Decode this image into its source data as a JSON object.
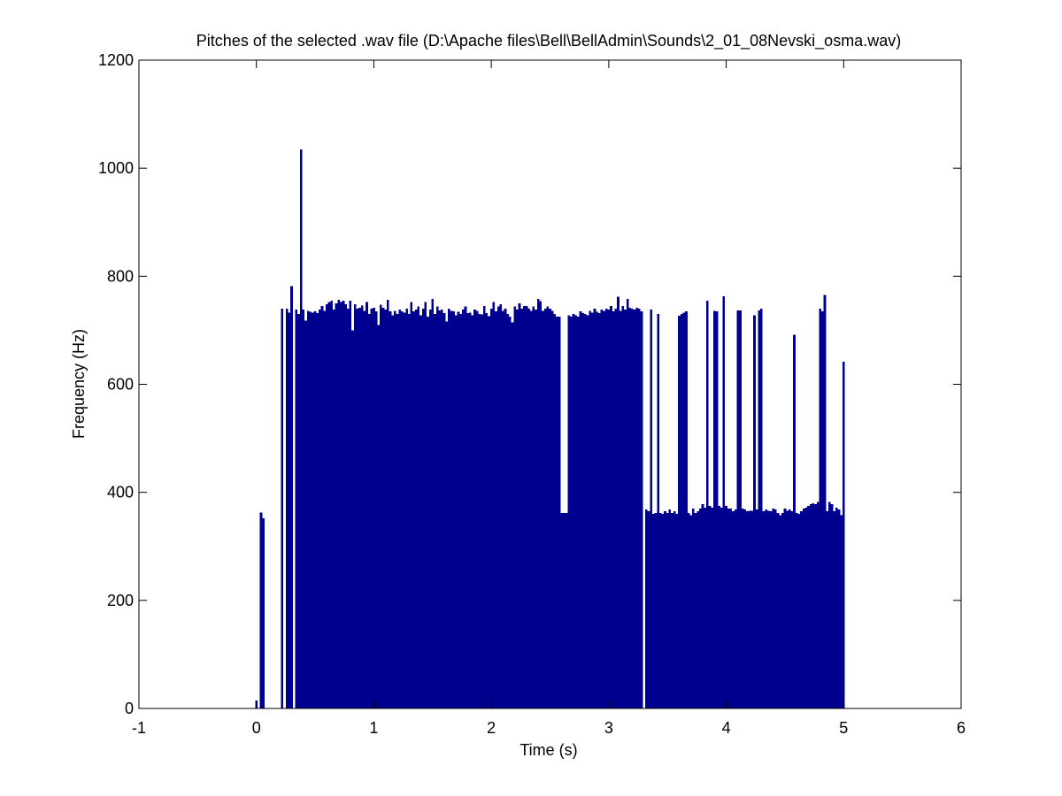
{
  "chart_data": {
    "type": "bar",
    "title": "Pitches of the selected .wav file (D:\\Apache files\\Bell\\BellAdmin\\Sounds\\2_01_08Nevski_osma.wav)",
    "x_label": "Time (s)",
    "y_label": "Frequency (Hz)",
    "color": "#00008f",
    "xlim": [
      -1,
      6
    ],
    "xticks": [
      -1,
      0,
      1,
      2,
      3,
      4,
      5,
      6
    ],
    "ylim": [
      0,
      1200
    ],
    "yticks": [
      0,
      200,
      400,
      600,
      800,
      1000,
      1200
    ],
    "x": [
      0,
      0.02,
      0.04,
      0.06,
      0.08,
      0.1,
      0.12,
      0.14,
      0.16,
      0.18,
      0.2,
      0.22,
      0.24,
      0.26,
      0.28,
      0.3,
      0.32,
      0.34,
      0.36,
      0.38,
      0.4,
      0.42,
      0.44,
      0.46,
      0.48,
      0.5,
      0.52,
      0.54,
      0.56,
      0.58,
      0.6,
      0.62,
      0.64,
      0.66,
      0.68,
      0.7,
      0.72,
      0.74,
      0.76,
      0.78,
      0.8,
      0.82,
      0.84,
      0.86,
      0.88,
      0.9,
      0.92,
      0.94,
      0.96,
      0.98,
      1,
      1.02,
      1.04,
      1.06,
      1.08,
      1.1,
      1.12,
      1.14,
      1.16,
      1.18,
      1.2,
      1.22,
      1.24,
      1.26,
      1.28,
      1.3,
      1.32,
      1.34,
      1.36,
      1.38,
      1.4,
      1.42,
      1.44,
      1.46,
      1.48,
      1.5,
      1.52,
      1.54,
      1.56,
      1.58,
      1.6,
      1.62,
      1.64,
      1.66,
      1.68,
      1.7,
      1.72,
      1.74,
      1.76,
      1.78,
      1.8,
      1.82,
      1.84,
      1.86,
      1.88,
      1.9,
      1.92,
      1.94,
      1.96,
      1.98,
      2,
      2.02,
      2.04,
      2.06,
      2.08,
      2.1,
      2.12,
      2.14,
      2.16,
      2.18,
      2.2,
      2.22,
      2.24,
      2.26,
      2.28,
      2.3,
      2.32,
      2.34,
      2.36,
      2.38,
      2.4,
      2.42,
      2.44,
      2.46,
      2.48,
      2.5,
      2.52,
      2.54,
      2.56,
      2.58,
      2.6,
      2.62,
      2.64,
      2.66,
      2.68,
      2.7,
      2.72,
      2.74,
      2.76,
      2.78,
      2.8,
      2.82,
      2.84,
      2.86,
      2.88,
      2.9,
      2.92,
      2.94,
      2.96,
      2.98,
      3,
      3.02,
      3.04,
      3.06,
      3.08,
      3.1,
      3.12,
      3.14,
      3.16,
      3.18,
      3.2,
      3.22,
      3.24,
      3.26,
      3.28,
      3.3,
      3.32,
      3.34,
      3.36,
      3.38,
      3.4,
      3.42,
      3.44,
      3.46,
      3.48,
      3.5,
      3.52,
      3.54,
      3.56,
      3.58,
      3.6,
      3.62,
      3.64,
      3.66,
      3.68,
      3.7,
      3.72,
      3.74,
      3.76,
      3.78,
      3.8,
      3.82,
      3.84,
      3.86,
      3.88,
      3.9,
      3.92,
      3.94,
      3.96,
      3.98,
      4,
      4.02,
      4.04,
      4.06,
      4.08,
      4.1,
      4.12,
      4.14,
      4.16,
      4.18,
      4.2,
      4.22,
      4.24,
      4.26,
      4.28,
      4.3,
      4.32,
      4.34,
      4.36,
      4.38,
      4.4,
      4.42,
      4.44,
      4.46,
      4.48,
      4.5,
      4.52,
      4.54,
      4.56,
      4.58,
      4.6,
      4.62,
      4.64,
      4.66,
      4.68,
      4.7,
      4.72,
      4.74,
      4.76,
      4.78,
      4.8,
      4.82,
      4.84,
      4.86,
      4.88,
      4.9,
      4.92,
      4.94,
      4.96,
      4.98,
      5
    ],
    "values": [
      15,
      0,
      363,
      352,
      0,
      0,
      0,
      0,
      0,
      0,
      0,
      740,
      0,
      740,
      733,
      782,
      0,
      738,
      730,
      1035,
      738,
      718,
      736,
      734,
      733,
      735,
      732,
      738,
      745,
      736,
      748,
      752,
      755,
      738,
      750,
      756,
      752,
      755,
      748,
      740,
      755,
      700,
      748,
      740,
      742,
      746,
      736,
      752,
      730,
      740,
      742,
      735,
      710,
      747,
      742,
      738,
      756,
      735,
      728,
      736,
      730,
      738,
      735,
      733,
      740,
      730,
      752,
      735,
      738,
      744,
      728,
      740,
      752,
      725,
      738,
      758,
      730,
      744,
      737,
      738,
      732,
      716,
      740,
      736,
      735,
      728,
      734,
      730,
      738,
      744,
      732,
      733,
      728,
      738,
      736,
      730,
      729,
      745,
      732,
      726,
      740,
      752,
      735,
      744,
      748,
      736,
      740,
      730,
      725,
      715,
      744,
      738,
      750,
      740,
      745,
      745,
      740,
      736,
      744,
      738,
      758,
      754,
      736,
      740,
      744,
      740,
      736,
      730,
      725,
      725,
      362,
      362,
      362,
      728,
      725,
      730,
      728,
      725,
      735,
      732,
      730,
      728,
      736,
      733,
      740,
      734,
      732,
      738,
      736,
      740,
      738,
      745,
      735,
      740,
      762,
      736,
      745,
      738,
      758,
      742,
      740,
      738,
      742,
      740,
      735,
      0,
      368,
      365,
      738,
      360,
      362,
      730,
      362,
      360,
      365,
      362,
      368,
      362,
      365,
      360,
      727,
      730,
      733,
      735,
      362,
      358,
      370,
      362,
      365,
      370,
      378,
      372,
      755,
      375,
      372,
      736,
      735,
      375,
      372,
      763,
      375,
      370,
      370,
      365,
      368,
      737,
      737,
      370,
      368,
      365,
      366,
      366,
      728,
      368,
      737,
      740,
      365,
      368,
      366,
      365,
      370,
      368,
      362,
      358,
      362,
      370,
      366,
      368,
      365,
      692,
      362,
      360,
      365,
      370,
      372,
      375,
      378,
      380,
      378,
      382,
      740,
      735,
      765,
      365,
      382,
      378,
      365,
      372,
      368,
      358,
      642
    ]
  }
}
